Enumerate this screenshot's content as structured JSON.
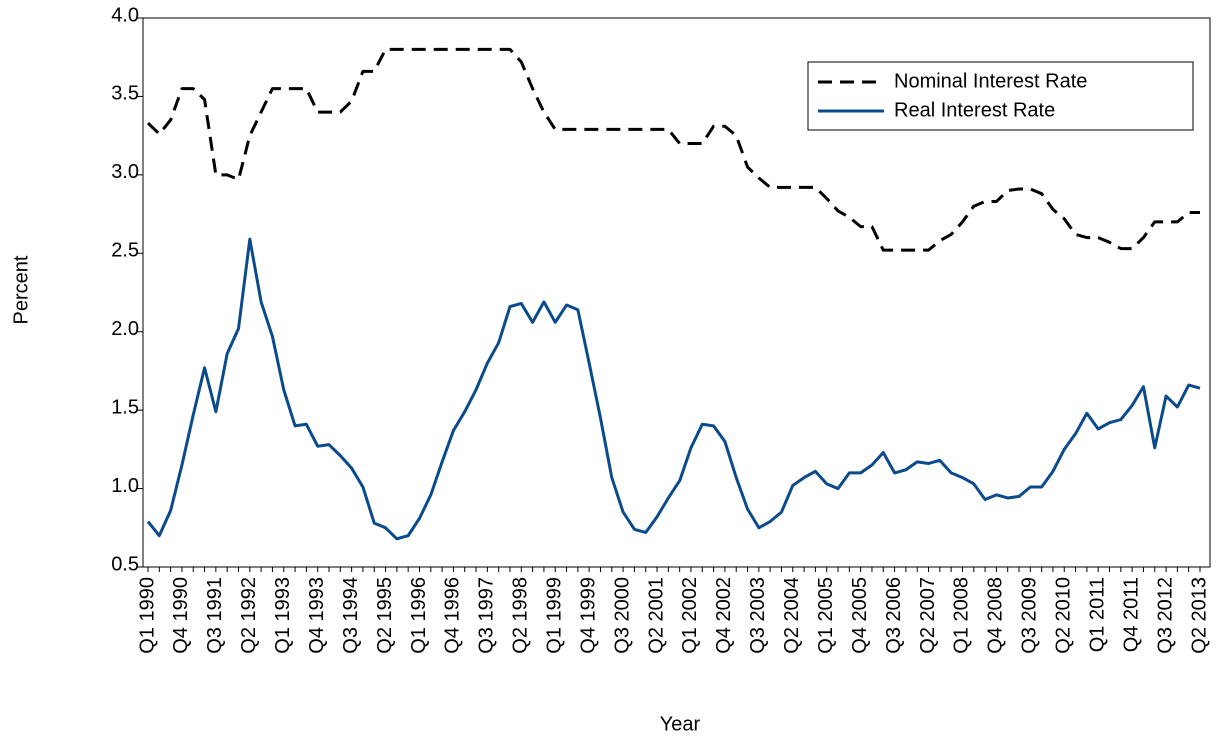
{
  "chart_data": {
    "type": "line",
    "x_label": "Year",
    "y_label": "Percent",
    "categories": [
      "Q1 1990",
      null,
      null,
      "Q4 1990",
      null,
      null,
      "Q3 1991",
      null,
      null,
      "Q2 1992",
      null,
      null,
      "Q1 1993",
      null,
      null,
      "Q4 1993",
      null,
      null,
      "Q3 1994",
      null,
      null,
      "Q2 1995",
      null,
      null,
      "Q1 1996",
      null,
      null,
      "Q4 1996",
      null,
      null,
      "Q3 1997",
      null,
      null,
      "Q2 1998",
      null,
      null,
      "Q1 1999",
      null,
      null,
      "Q4 1999",
      null,
      null,
      "Q3 2000",
      null,
      null,
      "Q2 2001",
      null,
      null,
      "Q1 2002",
      null,
      null,
      "Q4 2002",
      null,
      null,
      "Q3 2003",
      null,
      null,
      "Q2 2004",
      null,
      null,
      "Q1 2005",
      null,
      null,
      "Q4 2005",
      null,
      null,
      "Q3 2006",
      null,
      null,
      "Q2 2007",
      null,
      null,
      "Q1 2008",
      null,
      null,
      "Q4 2008",
      null,
      null,
      "Q3 2009",
      null,
      null,
      "Q2 2010",
      null,
      null,
      "Q1 2011",
      null,
      null,
      "Q4 2011",
      null,
      null,
      "Q3 2012",
      null,
      null,
      "Q2 2013"
    ],
    "series": [
      {
        "name": "Nominal Interest Rate",
        "color": "#000000",
        "dashed": true,
        "values": [
          3.33,
          3.26,
          3.35,
          3.55,
          3.55,
          3.48,
          3.0,
          3.0,
          2.97,
          3.25,
          3.4,
          3.55,
          3.55,
          3.55,
          3.55,
          3.4,
          3.4,
          3.4,
          3.47,
          3.66,
          3.66,
          3.8,
          3.8,
          3.8,
          3.8,
          3.8,
          3.8,
          3.8,
          3.8,
          3.8,
          3.8,
          3.8,
          3.8,
          3.72,
          3.55,
          3.4,
          3.29,
          3.29,
          3.29,
          3.29,
          3.29,
          3.29,
          3.29,
          3.29,
          3.29,
          3.29,
          3.29,
          3.2,
          3.2,
          3.2,
          3.31,
          3.31,
          3.25,
          3.05,
          2.98,
          2.92,
          2.92,
          2.92,
          2.92,
          2.92,
          2.85,
          2.77,
          2.73,
          2.67,
          2.67,
          2.52,
          2.52,
          2.52,
          2.52,
          2.52,
          2.58,
          2.62,
          2.7,
          2.8,
          2.83,
          2.83,
          2.9,
          2.91,
          2.91,
          2.88,
          2.78,
          2.72,
          2.62,
          2.6,
          2.6,
          2.57,
          2.53,
          2.53,
          2.6,
          2.7,
          2.7,
          2.7,
          2.76,
          2.76
        ]
      },
      {
        "name": "Real Interest Rate",
        "color": "#0b4a8b",
        "dashed": false,
        "values": [
          0.79,
          0.7,
          0.86,
          1.15,
          1.47,
          1.77,
          1.49,
          1.86,
          2.02,
          2.59,
          2.19,
          1.97,
          1.63,
          1.4,
          1.41,
          1.27,
          1.28,
          1.21,
          1.13,
          1.01,
          0.78,
          0.75,
          0.68,
          0.7,
          0.81,
          0.96,
          1.17,
          1.37,
          1.49,
          1.63,
          1.8,
          1.93,
          2.16,
          2.18,
          2.06,
          2.19,
          2.06,
          2.17,
          2.14,
          1.8,
          1.45,
          1.07,
          0.85,
          0.74,
          0.72,
          0.82,
          0.94,
          1.05,
          1.26,
          1.41,
          1.4,
          1.3,
          1.07,
          0.87,
          0.75,
          0.79,
          0.85,
          1.02,
          1.07,
          1.11,
          1.03,
          1.0,
          1.1,
          1.1,
          1.15,
          1.23,
          1.1,
          1.12,
          1.17,
          1.16,
          1.18,
          1.1,
          1.07,
          1.03,
          0.93,
          0.96,
          0.94,
          0.95,
          1.01,
          1.01,
          1.11,
          1.25,
          1.35,
          1.48,
          1.38,
          1.42,
          1.44,
          1.53,
          1.65,
          1.26,
          1.59,
          1.52,
          1.66,
          1.64
        ]
      }
    ],
    "ylim": [
      0.5,
      4.0
    ],
    "yticks": [
      0.5,
      {
        "value": 1.0,
        "label": "1.0"
      },
      1.5,
      {
        "value": 2.0,
        "label": "2.0"
      },
      2.5,
      {
        "value": 3.0,
        "label": "3.0"
      },
      3.5,
      {
        "value": 4.0,
        "label": "4.0"
      }
    ],
    "grid": false,
    "legend": "upper right"
  }
}
